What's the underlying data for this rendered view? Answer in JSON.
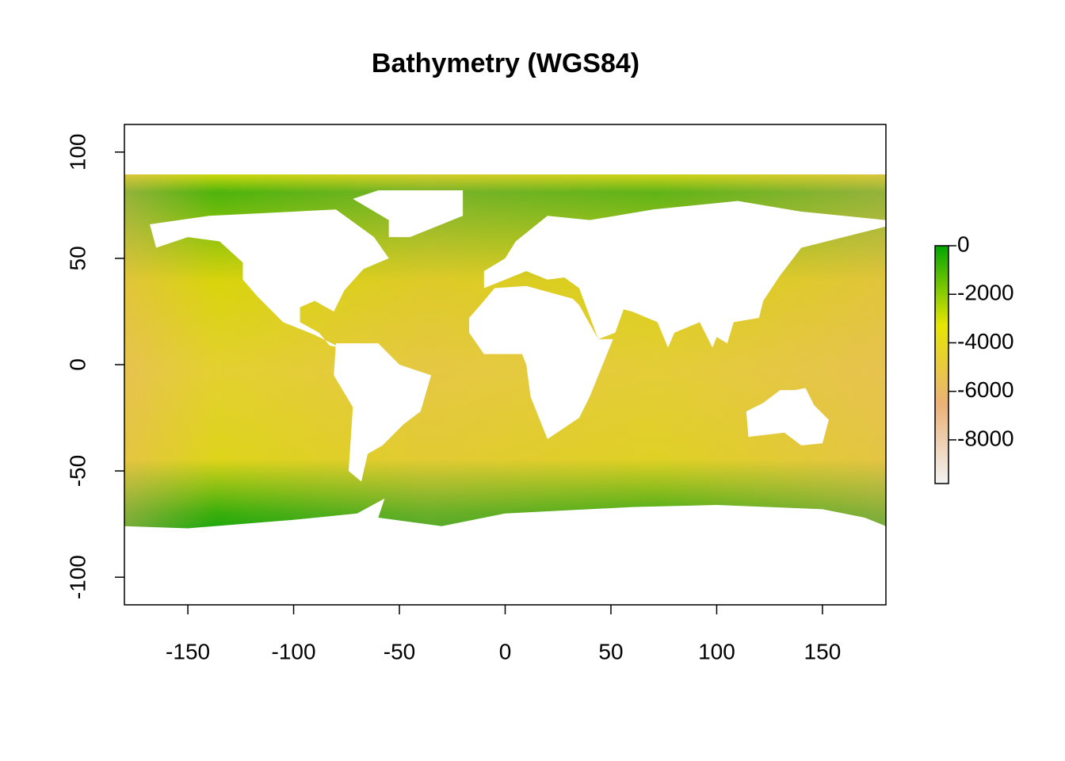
{
  "chart_data": {
    "type": "raster",
    "title": "Bathymetry (WGS84)",
    "xlim": [
      -180,
      180
    ],
    "xticks": [
      -150,
      -100,
      -50,
      0,
      50,
      100,
      150
    ],
    "ylim": [
      -113,
      113
    ],
    "yticks": [
      -100,
      -50,
      0,
      50,
      100
    ],
    "colorbar": {
      "lim": [
        -9800,
        0
      ],
      "ticks": [
        -8000,
        -6000,
        -4000,
        -2000,
        0
      ],
      "colors": [
        "#f2f2f2",
        "#ecb176",
        "#e6e600",
        "#00a600"
      ]
    }
  }
}
